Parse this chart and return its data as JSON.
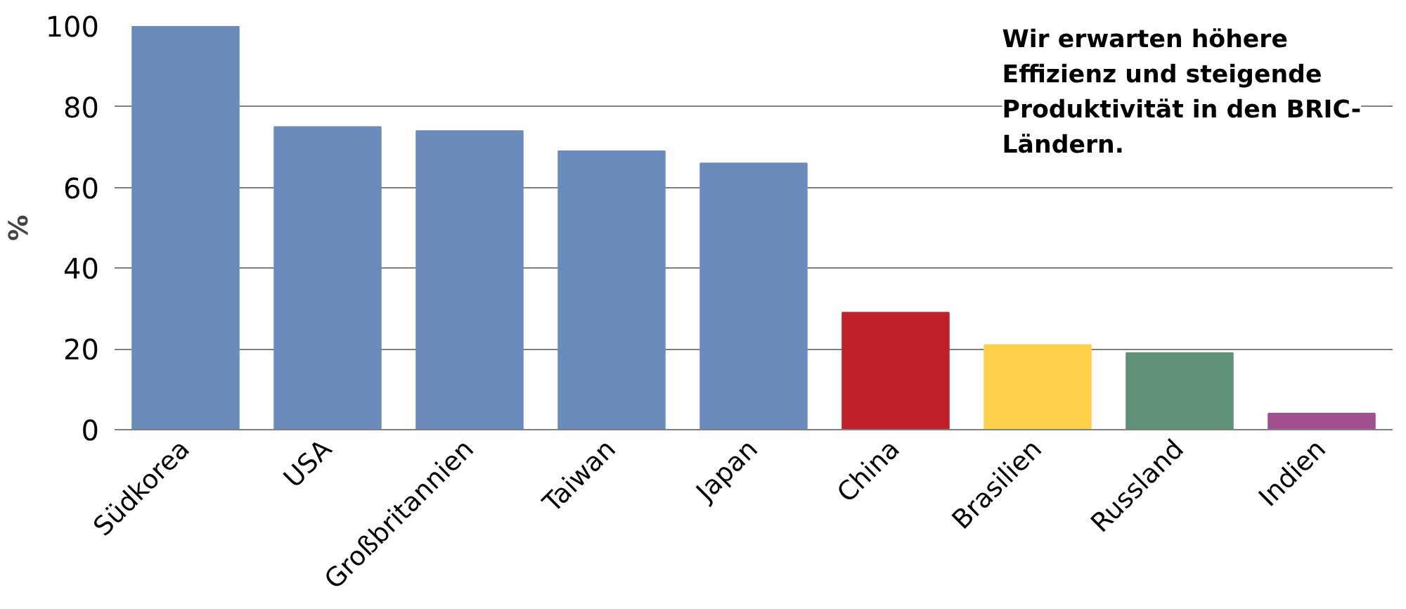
{
  "chart_data": {
    "type": "bar",
    "categories": [
      "Südkorea",
      "USA",
      "Großbritannien",
      "Taiwan",
      "Japan",
      "China",
      "Brasilien",
      "Russland",
      "Indien"
    ],
    "values": [
      100,
      75,
      74,
      69,
      66,
      29,
      21,
      19,
      4
    ],
    "colors": [
      "#6a8bbb",
      "#6a8bbb",
      "#6a8bbb",
      "#6a8bbb",
      "#6a8bbb",
      "#c0202a",
      "#fdd14a",
      "#5f9178",
      "#a0508f"
    ],
    "ylabel": "%",
    "ylim": [
      0,
      100
    ],
    "yticks": [
      0,
      20,
      40,
      60,
      80,
      100
    ],
    "grid": "y",
    "annotations": [
      "Wir erwarten höhere Effizienz und steigende Produktivität in den BRIC-Ländern."
    ]
  }
}
